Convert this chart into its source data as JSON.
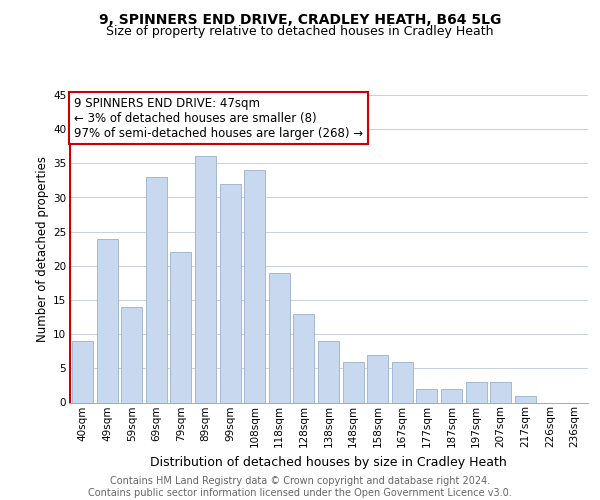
{
  "title": "9, SPINNERS END DRIVE, CRADLEY HEATH, B64 5LG",
  "subtitle": "Size of property relative to detached houses in Cradley Heath",
  "xlabel": "Distribution of detached houses by size in Cradley Heath",
  "ylabel": "Number of detached properties",
  "categories": [
    "40sqm",
    "49sqm",
    "59sqm",
    "69sqm",
    "79sqm",
    "89sqm",
    "99sqm",
    "108sqm",
    "118sqm",
    "128sqm",
    "138sqm",
    "148sqm",
    "158sqm",
    "167sqm",
    "177sqm",
    "187sqm",
    "197sqm",
    "207sqm",
    "217sqm",
    "226sqm",
    "236sqm"
  ],
  "values": [
    9,
    24,
    14,
    33,
    22,
    36,
    32,
    34,
    19,
    13,
    9,
    6,
    7,
    6,
    2,
    2,
    3,
    3,
    1,
    0,
    0
  ],
  "bar_color": "#c8d8ee",
  "bar_edge_color": "#9ab0cc",
  "annotation_box_text": "9 SPINNERS END DRIVE: 47sqm\n← 3% of detached houses are smaller (8)\n97% of semi-detached houses are larger (268) →",
  "annotation_box_color": "#ffffff",
  "annotation_box_edge_color": "#cc0000",
  "marker_line_color": "#cc0000",
  "ylim": [
    0,
    45
  ],
  "yticks": [
    0,
    5,
    10,
    15,
    20,
    25,
    30,
    35,
    40,
    45
  ],
  "grid_color": "#c8d0dc",
  "footnote": "Contains HM Land Registry data © Crown copyright and database right 2024.\nContains public sector information licensed under the Open Government Licence v3.0.",
  "title_fontsize": 10,
  "subtitle_fontsize": 9,
  "xlabel_fontsize": 9,
  "ylabel_fontsize": 8.5,
  "tick_fontsize": 7.5,
  "annot_fontsize": 8.5,
  "footnote_fontsize": 7
}
